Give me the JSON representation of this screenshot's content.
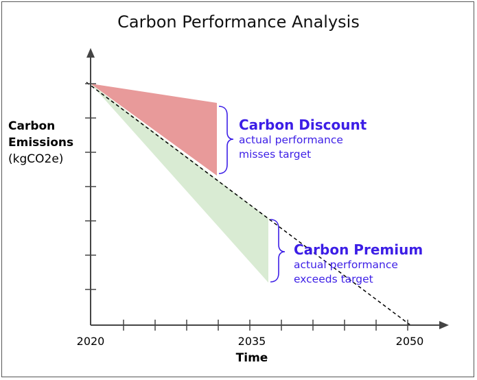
{
  "title": "Carbon Performance Analysis",
  "y_axis": {
    "label_line1": "Carbon",
    "label_line2": "Emissions",
    "label_line3": "(kgCO2e)"
  },
  "x_axis": {
    "title": "Time",
    "tick_labels": [
      "2020",
      "2035",
      "2050"
    ]
  },
  "annotations": {
    "discount": {
      "heading": "Carbon Discount",
      "line1": "actual performance",
      "line2": "misses target"
    },
    "premium": {
      "heading": "Carbon Premium",
      "line1": "actual performance",
      "line2": "exceeds target"
    }
  },
  "colors": {
    "discount_fill": "#e89a9a",
    "premium_fill": "#d9ebd3",
    "annotation_text": "#3c1ee6",
    "axis": "#444444"
  }
}
